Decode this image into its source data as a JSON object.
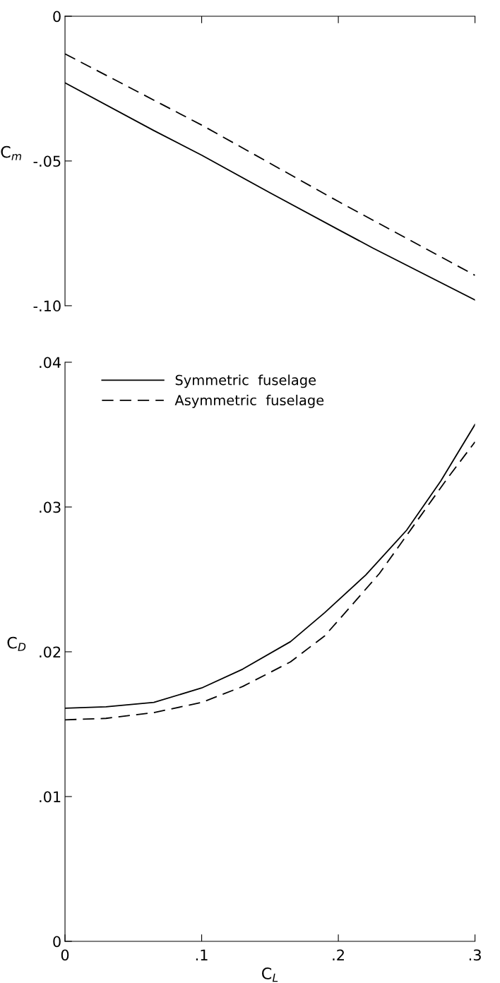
{
  "chart_data": [
    {
      "type": "line",
      "ylabel": "C$_{m}$",
      "xlim": [
        0,
        0.3
      ],
      "ylim": [
        -0.1,
        0
      ],
      "xticks": [
        {
          "value": 0.1,
          "label": null
        },
        {
          "value": 0.2,
          "label": null
        },
        {
          "value": 0.3,
          "label": null
        }
      ],
      "yticks": [
        0,
        {
          "value": -0.05,
          "label": "-.05"
        },
        {
          "value": -0.1,
          "label": "-.10"
        }
      ],
      "tick_labels": "y",
      "grid": false,
      "legend": false,
      "marker": "none",
      "series": [
        {
          "color": "#000000",
          "line_style": "solid",
          "x": [
            0,
            0.065,
            0.1,
            0.15,
            0.2,
            0.225,
            0.3
          ],
          "values": [
            -0.023,
            -0.0395,
            -0.048,
            -0.061,
            -0.0737,
            -0.08,
            -0.098
          ]
        },
        {
          "color": "#000000",
          "line_style": "dashed",
          "x": [
            0,
            0.1,
            0.2,
            0.3
          ],
          "values": [
            -0.013,
            -0.0376,
            -0.064,
            -0.0895
          ]
        }
      ]
    },
    {
      "type": "line",
      "xlabel": "C$_{L}$",
      "ylabel": "C$_{D}$",
      "xlim": [
        0,
        0.3
      ],
      "ylim": [
        0,
        0.04
      ],
      "xticks": [
        0,
        {
          "value": 0.1,
          "label": ".1"
        },
        {
          "value": 0.2,
          "label": ".2"
        },
        {
          "value": 0.3,
          "label": ".3"
        }
      ],
      "yticks": [
        0,
        {
          "value": 0.01,
          "label": ".01"
        },
        {
          "value": 0.02,
          "label": ".02"
        },
        {
          "value": 0.03,
          "label": ".03"
        },
        {
          "value": 0.04,
          "label": ".04"
        }
      ],
      "grid": false,
      "legend": "top left",
      "marker": "none",
      "series": [
        {
          "name": "Symmetric  fuselage",
          "color": "#000000",
          "line_style": "solid",
          "x": [
            0,
            0.03,
            0.065,
            0.1,
            0.13,
            0.165,
            0.19,
            0.22,
            0.25,
            0.275,
            0.3
          ],
          "values": [
            0.0161,
            0.0162,
            0.0165,
            0.0175,
            0.0188,
            0.0207,
            0.0227,
            0.0253,
            0.0284,
            0.0318,
            0.0357
          ]
        },
        {
          "name": "Asymmetric  fuselage",
          "color": "#000000",
          "line_style": "dashed",
          "x": [
            0,
            0.03,
            0.065,
            0.1,
            0.13,
            0.165,
            0.19,
            0.205,
            0.23,
            0.255,
            0.28,
            0.3
          ],
          "values": [
            0.0153,
            0.0154,
            0.0158,
            0.0165,
            0.0176,
            0.0193,
            0.0211,
            0.0227,
            0.0254,
            0.0287,
            0.032,
            0.0345
          ]
        }
      ]
    }
  ]
}
